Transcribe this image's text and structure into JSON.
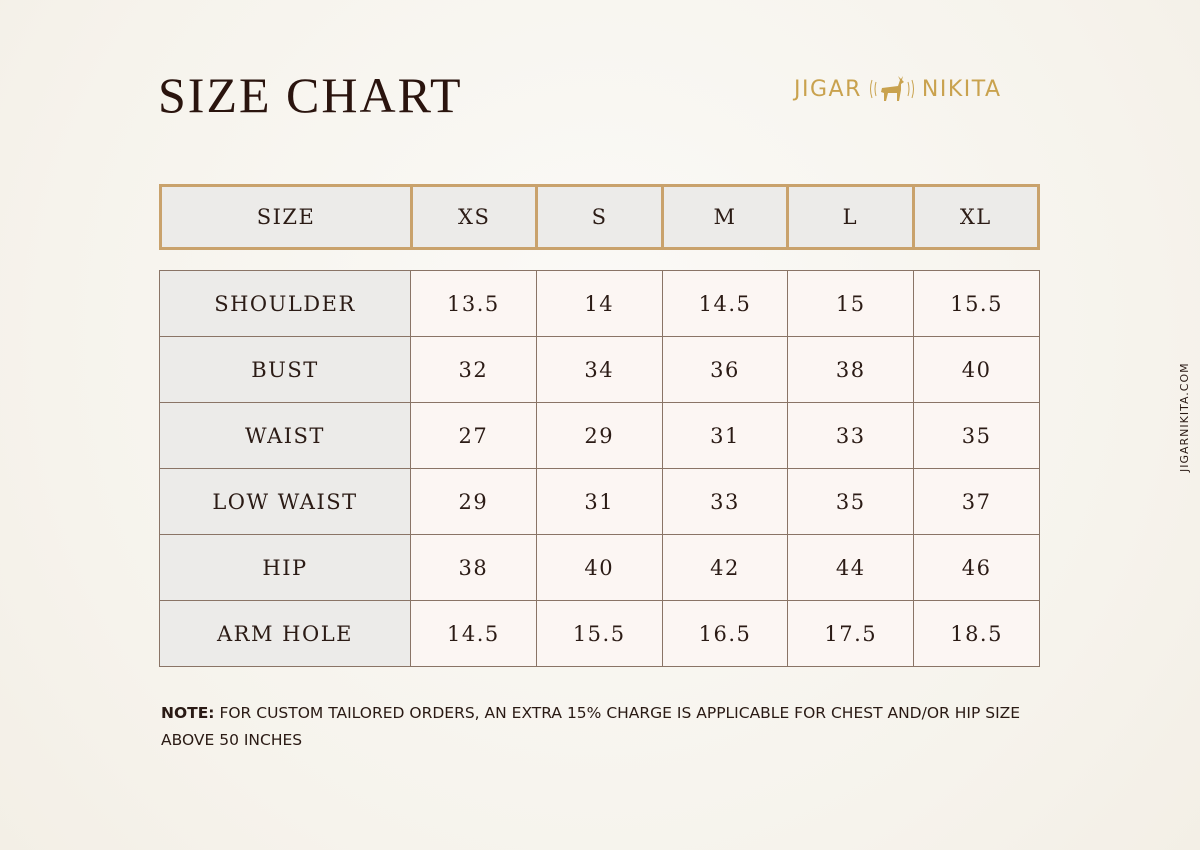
{
  "title": "SIZE CHART",
  "brand": {
    "left": "JIGAR",
    "right": "NIKITA",
    "icon": "deer-icon",
    "color": "#c9a24e"
  },
  "website": "JIGARNIKITA.COM",
  "header": [
    "SIZE",
    "XS",
    "S",
    "M",
    "L",
    "XL"
  ],
  "rows": [
    {
      "label": "SHOULDER",
      "values": [
        "13.5",
        "14",
        "14.5",
        "15",
        "15.5"
      ]
    },
    {
      "label": "BUST",
      "values": [
        "32",
        "34",
        "36",
        "38",
        "40"
      ]
    },
    {
      "label": "WAIST",
      "values": [
        "27",
        "29",
        "31",
        "33",
        "35"
      ]
    },
    {
      "label": "LOW WAIST",
      "values": [
        "29",
        "31",
        "33",
        "35",
        "37"
      ]
    },
    {
      "label": "HIP",
      "values": [
        "38",
        "40",
        "42",
        "44",
        "46"
      ]
    },
    {
      "label": "ARM HOLE",
      "values": [
        "14.5",
        "15.5",
        "16.5",
        "17.5",
        "18.5"
      ]
    }
  ],
  "note": {
    "label": "NOTE:",
    "text": " FOR CUSTOM TAILORED ORDERS, AN EXTRA 15% CHARGE IS APPLICABLE FOR CHEST AND/OR HIP SIZE ABOVE 50 INCHES"
  }
}
